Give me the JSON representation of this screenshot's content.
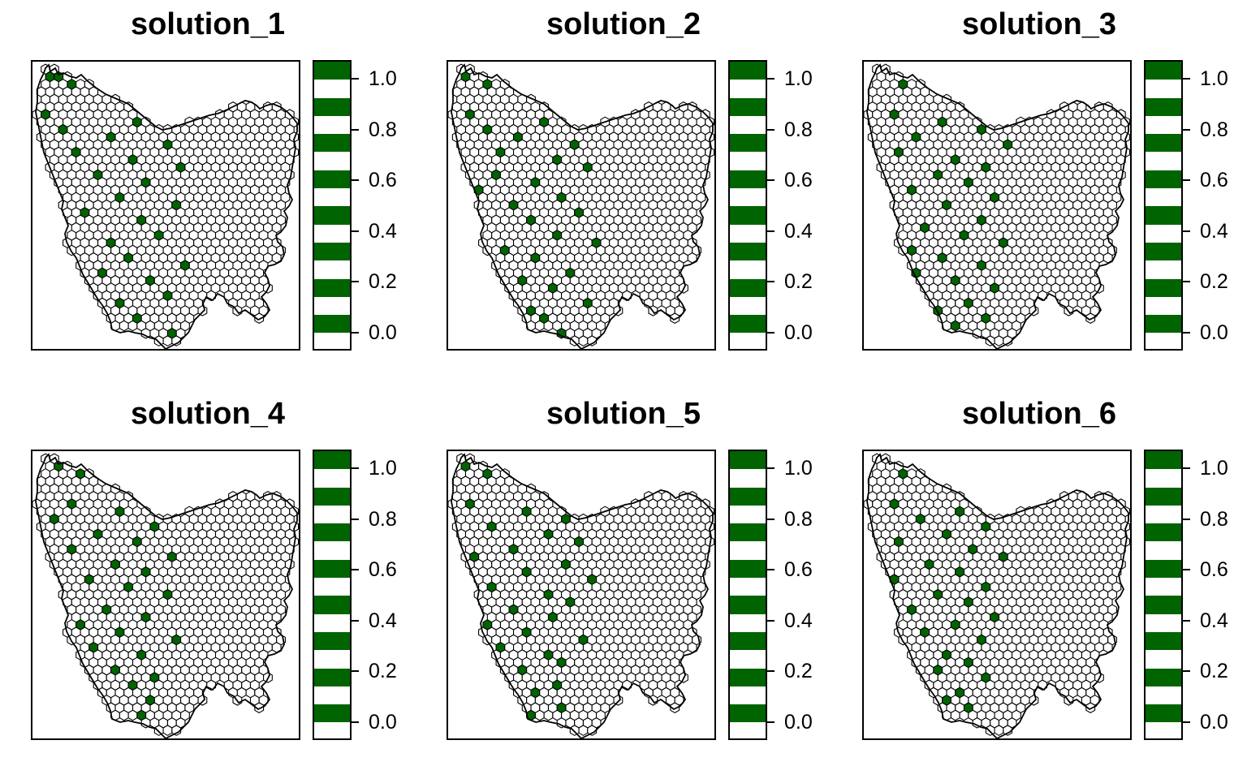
{
  "colors": {
    "selected": "#006400",
    "unselected": "#ffffff",
    "outline": "#000000"
  },
  "legend": {
    "labels": [
      "1.0",
      "0.8",
      "0.6",
      "0.4",
      "0.2",
      "0.0"
    ],
    "values": [
      1.0,
      0.8,
      0.6,
      0.4,
      0.2,
      0.0
    ]
  },
  "panels": [
    {
      "title": "solution_1",
      "selected_cells": [
        [
          0,
          2
        ],
        [
          1,
          4
        ],
        [
          1,
          6
        ],
        [
          2,
          2
        ],
        [
          2,
          3
        ],
        [
          2,
          5
        ],
        [
          3,
          4
        ],
        [
          3,
          7
        ],
        [
          3,
          8
        ],
        [
          4,
          9
        ],
        [
          5,
          14
        ],
        [
          6,
          18
        ],
        [
          7,
          1
        ],
        [
          8,
          12
        ],
        [
          9,
          3
        ],
        [
          10,
          9
        ],
        [
          11,
          15
        ],
        [
          12,
          5
        ],
        [
          13,
          11
        ],
        [
          14,
          17
        ],
        [
          15,
          7
        ],
        [
          16,
          13
        ],
        [
          17,
          2
        ],
        [
          18,
          10
        ],
        [
          19,
          16
        ],
        [
          20,
          6
        ],
        [
          21,
          12
        ],
        [
          22,
          4
        ],
        [
          23,
          14
        ],
        [
          24,
          9
        ],
        [
          25,
          3
        ],
        [
          26,
          11
        ],
        [
          27,
          17
        ],
        [
          28,
          8
        ],
        [
          29,
          13
        ],
        [
          30,
          6
        ],
        [
          31,
          15
        ],
        [
          32,
          10
        ],
        [
          33,
          5
        ],
        [
          34,
          12
        ],
        [
          35,
          7
        ],
        [
          36,
          16
        ],
        [
          37,
          9
        ]
      ]
    },
    {
      "title": "solution_2",
      "selected_cells": [
        [
          0,
          3
        ],
        [
          1,
          5
        ],
        [
          2,
          2
        ],
        [
          2,
          6
        ],
        [
          3,
          4
        ],
        [
          3,
          8
        ],
        [
          4,
          10
        ],
        [
          5,
          13
        ],
        [
          6,
          17
        ],
        [
          7,
          2
        ],
        [
          8,
          11
        ],
        [
          9,
          4
        ],
        [
          10,
          8
        ],
        [
          11,
          14
        ],
        [
          12,
          6
        ],
        [
          13,
          12
        ],
        [
          14,
          16
        ],
        [
          15,
          5
        ],
        [
          16,
          10
        ],
        [
          17,
          3
        ],
        [
          18,
          13
        ],
        [
          19,
          7
        ],
        [
          20,
          15
        ],
        [
          21,
          9
        ],
        [
          22,
          4
        ],
        [
          23,
          12
        ],
        [
          24,
          17
        ],
        [
          25,
          6
        ],
        [
          26,
          10
        ],
        [
          27,
          3
        ],
        [
          28,
          14
        ],
        [
          29,
          8
        ],
        [
          30,
          12
        ],
        [
          31,
          5
        ],
        [
          32,
          16
        ],
        [
          33,
          9
        ],
        [
          34,
          11
        ],
        [
          35,
          6
        ],
        [
          36,
          13
        ]
      ]
    },
    {
      "title": "solution_3",
      "selected_cells": [
        [
          0,
          2
        ],
        [
          1,
          3
        ],
        [
          1,
          6
        ],
        [
          2,
          5
        ],
        [
          3,
          4
        ],
        [
          3,
          7
        ],
        [
          4,
          11
        ],
        [
          5,
          15
        ],
        [
          6,
          18
        ],
        [
          7,
          3
        ],
        [
          8,
          9
        ],
        [
          9,
          13
        ],
        [
          10,
          6
        ],
        [
          11,
          16
        ],
        [
          12,
          4
        ],
        [
          13,
          10
        ],
        [
          14,
          14
        ],
        [
          15,
          8
        ],
        [
          16,
          12
        ],
        [
          17,
          5
        ],
        [
          18,
          15
        ],
        [
          19,
          9
        ],
        [
          20,
          3
        ],
        [
          21,
          13
        ],
        [
          22,
          7
        ],
        [
          23,
          11
        ],
        [
          24,
          16
        ],
        [
          25,
          5
        ],
        [
          26,
          9
        ],
        [
          27,
          13
        ],
        [
          28,
          6
        ],
        [
          29,
          10
        ],
        [
          30,
          15
        ],
        [
          31,
          4
        ],
        [
          32,
          12
        ],
        [
          33,
          8
        ],
        [
          34,
          14
        ],
        [
          35,
          10
        ],
        [
          36,
          7
        ]
      ]
    },
    {
      "title": "solution_4",
      "selected_cells": [
        [
          0,
          2
        ],
        [
          1,
          4
        ],
        [
          2,
          3
        ],
        [
          2,
          6
        ],
        [
          3,
          5
        ],
        [
          3,
          8
        ],
        [
          4,
          12
        ],
        [
          5,
          16
        ],
        [
          6,
          18
        ],
        [
          7,
          4
        ],
        [
          8,
          10
        ],
        [
          9,
          2
        ],
        [
          10,
          14
        ],
        [
          11,
          7
        ],
        [
          12,
          12
        ],
        [
          13,
          4
        ],
        [
          14,
          16
        ],
        [
          15,
          9
        ],
        [
          16,
          13
        ],
        [
          17,
          6
        ],
        [
          18,
          11
        ],
        [
          19,
          15
        ],
        [
          20,
          3
        ],
        [
          21,
          8
        ],
        [
          22,
          13
        ],
        [
          23,
          5
        ],
        [
          24,
          10
        ],
        [
          25,
          16
        ],
        [
          26,
          7
        ],
        [
          27,
          12
        ],
        [
          28,
          4
        ],
        [
          29,
          9
        ],
        [
          30,
          14
        ],
        [
          31,
          11
        ],
        [
          32,
          6
        ],
        [
          33,
          13
        ],
        [
          34,
          8
        ],
        [
          35,
          12
        ],
        [
          36,
          10
        ]
      ]
    },
    {
      "title": "solution_5",
      "selected_cells": [
        [
          0,
          3
        ],
        [
          1,
          5
        ],
        [
          2,
          2
        ],
        [
          2,
          7
        ],
        [
          3,
          4
        ],
        [
          3,
          9
        ],
        [
          4,
          12
        ],
        [
          5,
          16
        ],
        [
          6,
          18
        ],
        [
          7,
          2
        ],
        [
          8,
          9
        ],
        [
          9,
          13
        ],
        [
          10,
          5
        ],
        [
          11,
          11
        ],
        [
          12,
          15
        ],
        [
          13,
          7
        ],
        [
          14,
          3
        ],
        [
          15,
          13
        ],
        [
          16,
          9
        ],
        [
          17,
          16
        ],
        [
          18,
          5
        ],
        [
          19,
          11
        ],
        [
          20,
          14
        ],
        [
          21,
          7
        ],
        [
          22,
          12
        ],
        [
          23,
          4
        ],
        [
          24,
          9
        ],
        [
          25,
          15
        ],
        [
          26,
          6
        ],
        [
          27,
          11
        ],
        [
          28,
          13
        ],
        [
          29,
          8
        ],
        [
          30,
          4
        ],
        [
          31,
          12
        ],
        [
          32,
          10
        ],
        [
          33,
          7
        ],
        [
          34,
          13
        ],
        [
          35,
          9
        ],
        [
          36,
          6
        ]
      ]
    },
    {
      "title": "solution_6",
      "selected_cells": [
        [
          0,
          2
        ],
        [
          1,
          3
        ],
        [
          1,
          6
        ],
        [
          2,
          5
        ],
        [
          3,
          4
        ],
        [
          3,
          7
        ],
        [
          4,
          10
        ],
        [
          5,
          15
        ],
        [
          6,
          18
        ],
        [
          7,
          3
        ],
        [
          8,
          11
        ],
        [
          9,
          6
        ],
        [
          10,
          14
        ],
        [
          11,
          9
        ],
        [
          12,
          4
        ],
        [
          13,
          12
        ],
        [
          14,
          16
        ],
        [
          15,
          7
        ],
        [
          16,
          11
        ],
        [
          17,
          3
        ],
        [
          18,
          14
        ],
        [
          19,
          8
        ],
        [
          20,
          12
        ],
        [
          21,
          5
        ],
        [
          22,
          15
        ],
        [
          23,
          10
        ],
        [
          24,
          7
        ],
        [
          25,
          13
        ],
        [
          26,
          4
        ],
        [
          27,
          9
        ],
        [
          28,
          12
        ],
        [
          29,
          8
        ],
        [
          30,
          14
        ],
        [
          31,
          6
        ],
        [
          32,
          11
        ],
        [
          33,
          9
        ],
        [
          34,
          12
        ],
        [
          35,
          7
        ],
        [
          36,
          10
        ]
      ]
    }
  ]
}
